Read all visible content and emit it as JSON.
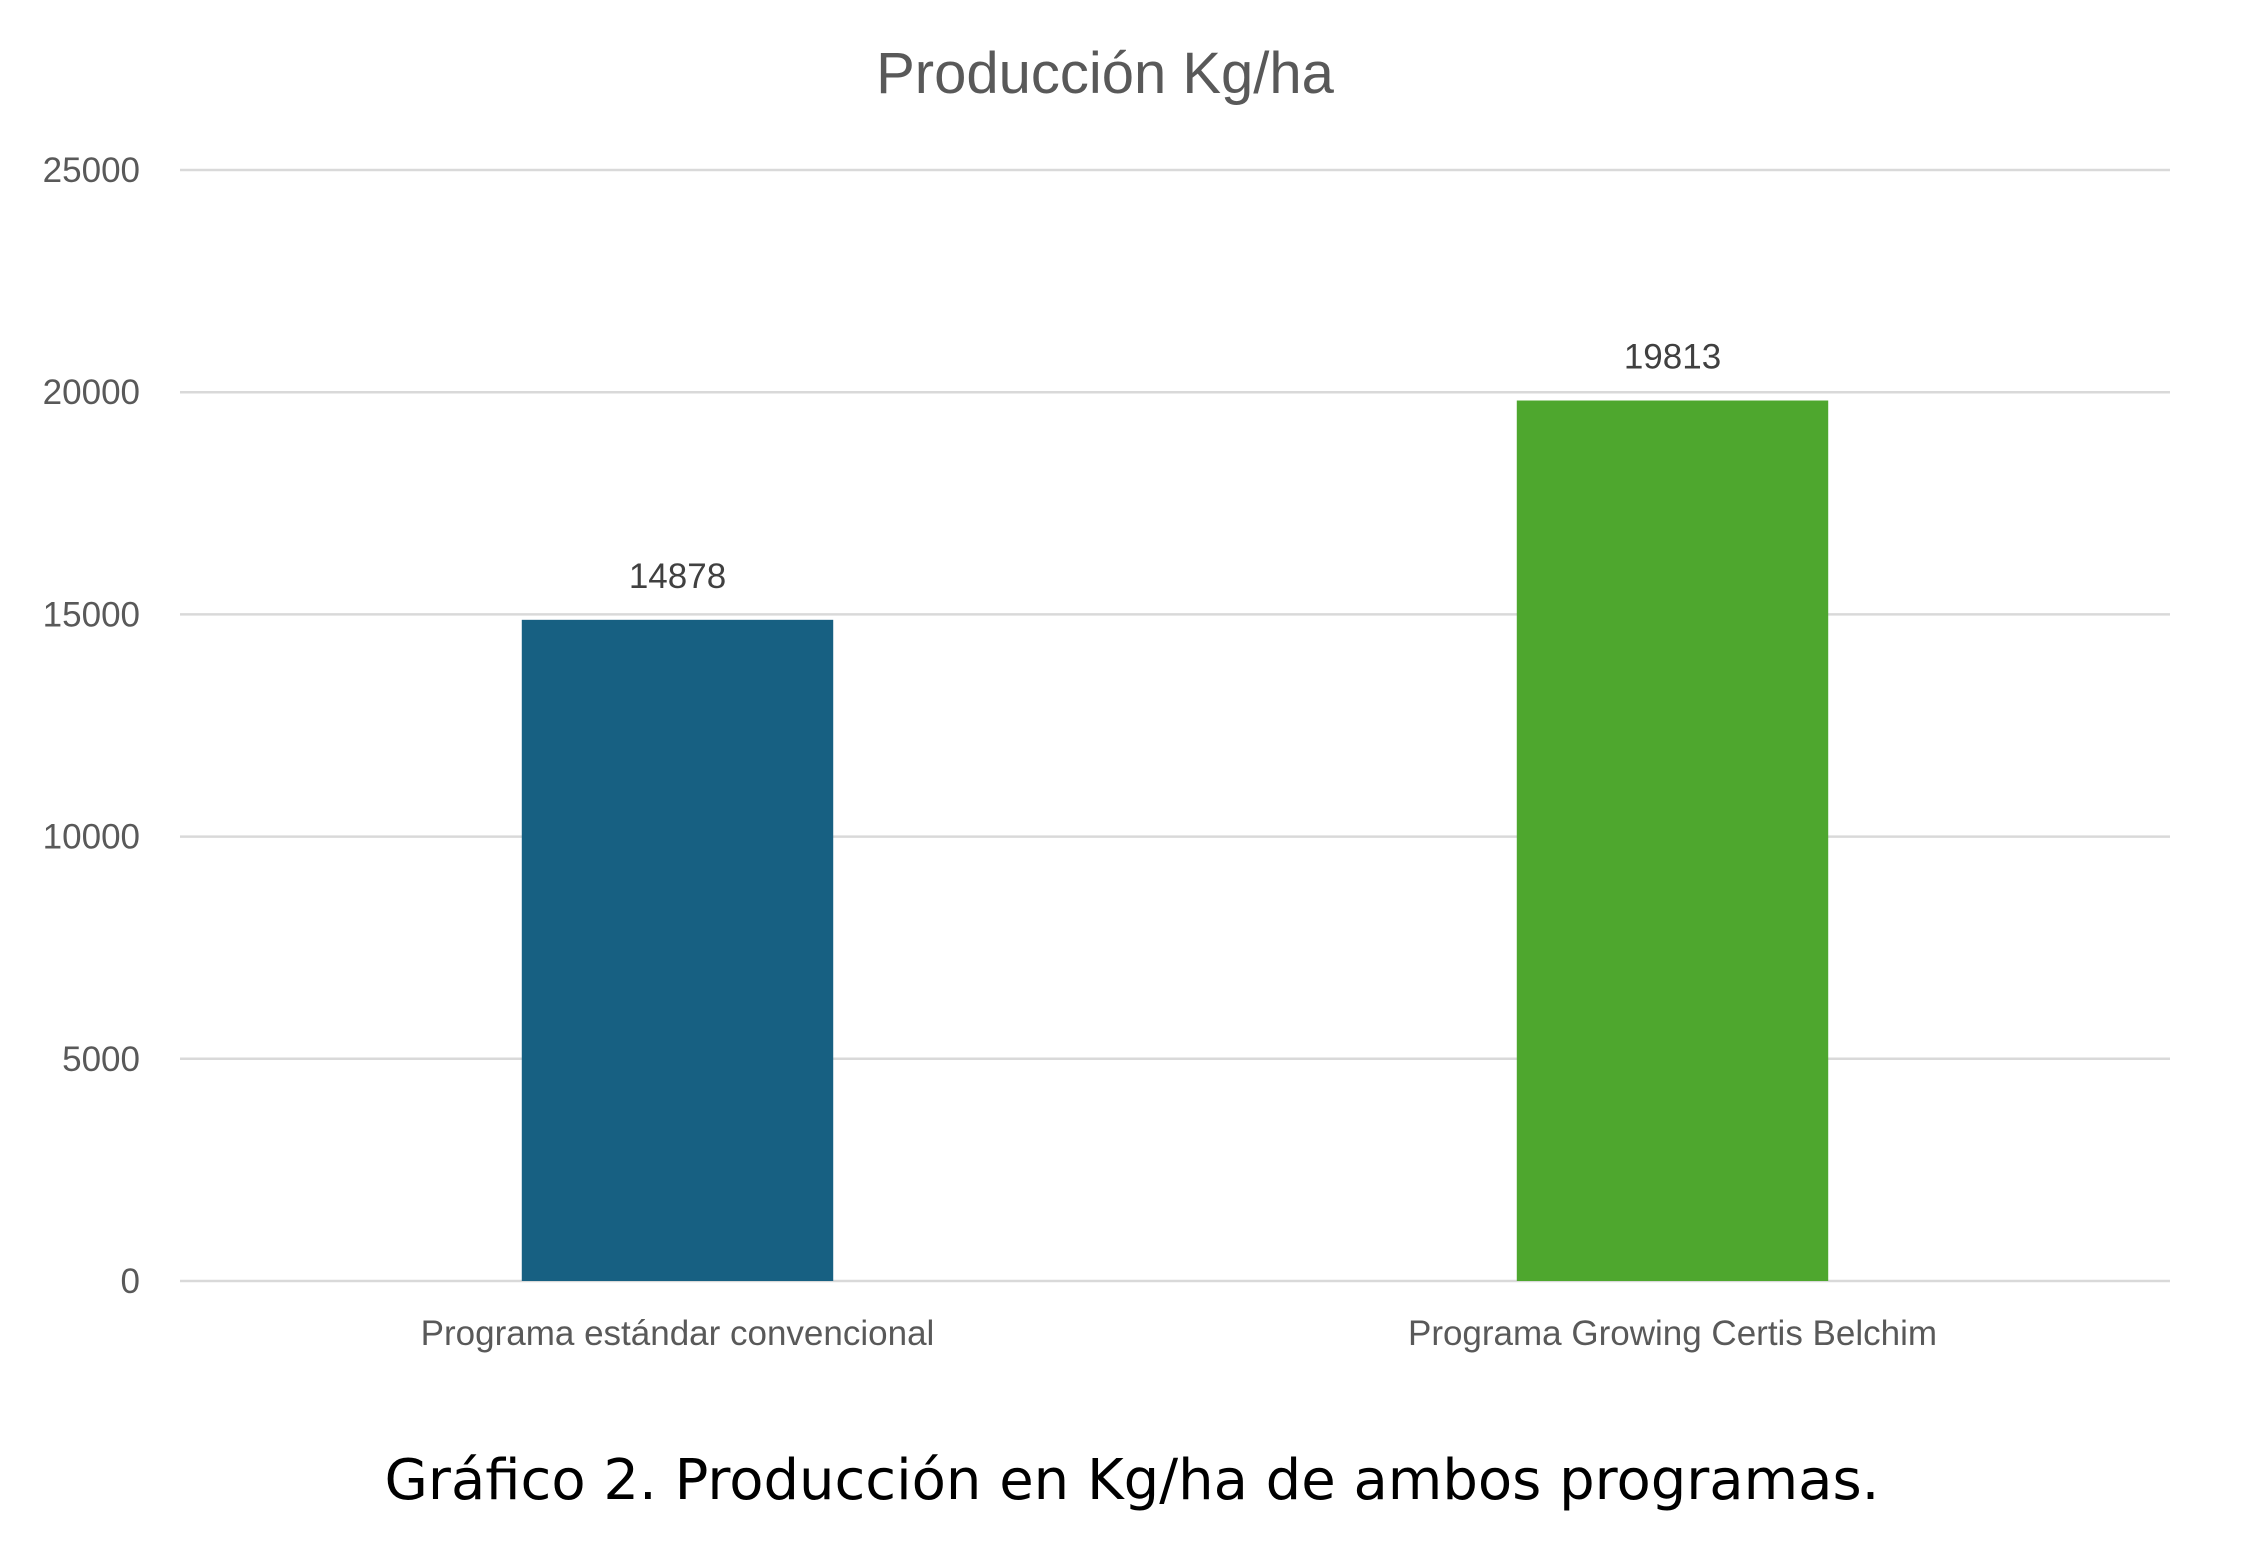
{
  "chart_data": {
    "type": "bar",
    "title": "Producción Kg/ha",
    "categories": [
      "Programa estándar convencional",
      "Programa Growing Certis Belchim"
    ],
    "values": [
      14878,
      19813
    ],
    "data_labels": [
      "14878",
      "19813"
    ],
    "colors": [
      "#176082",
      "#4ea72e"
    ],
    "ylim": [
      0,
      25000
    ],
    "yticks": [
      0,
      5000,
      10000,
      15000,
      20000,
      25000
    ],
    "grid": true,
    "legend": "none"
  },
  "caption": "Gráfico 2. Producción en Kg/ha de ambos programas."
}
